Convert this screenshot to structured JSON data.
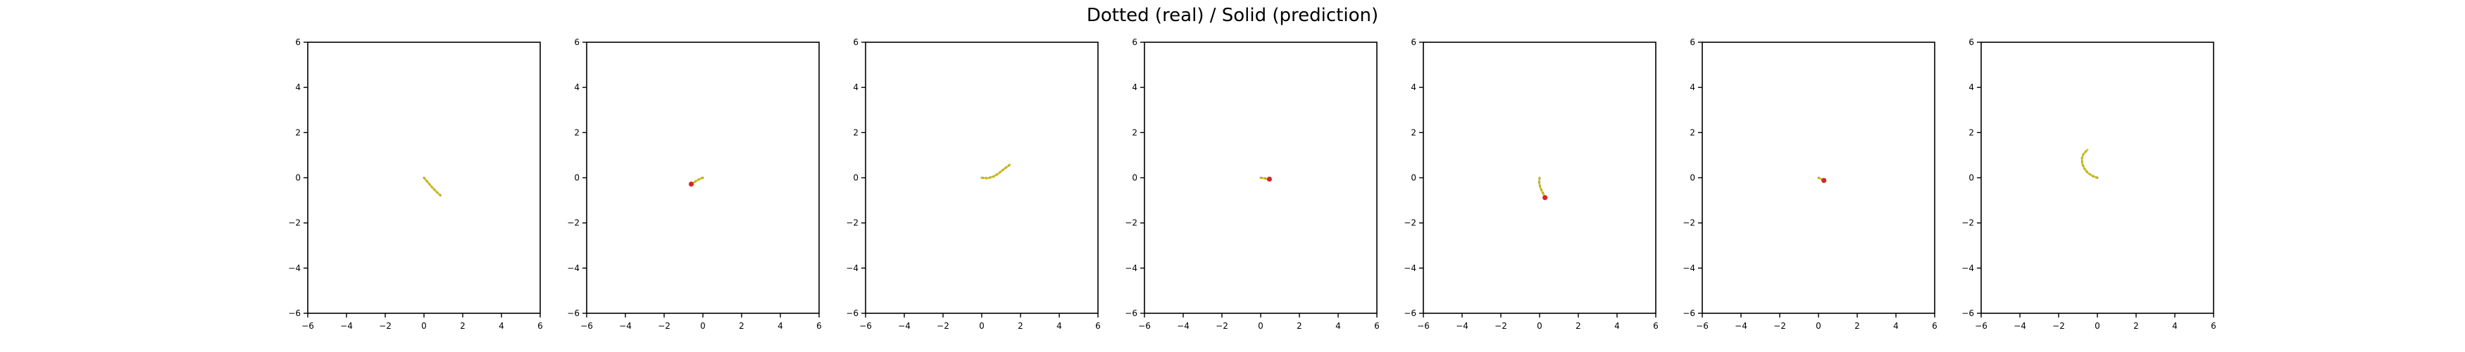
{
  "figure": {
    "title": "Dotted (real) / Solid (prediction)"
  },
  "colors": {
    "real": "#000000",
    "prediction": "#d4c400",
    "endpoint": "#d62728",
    "frame": "#000000"
  },
  "chart_data": [
    {
      "type": "line",
      "xlim": [
        -6,
        6
      ],
      "ylim": [
        -6,
        6
      ],
      "xticks": [
        -6,
        -4,
        -2,
        0,
        2,
        4,
        6
      ],
      "yticks": [
        -6,
        -4,
        -2,
        0,
        2,
        4,
        6
      ],
      "grid": false,
      "series": [
        {
          "style": "dotted",
          "x": [
            0,
            0.15,
            0.3,
            0.45,
            0.6,
            0.75,
            0.85
          ],
          "y": [
            0,
            -0.15,
            -0.3,
            -0.45,
            -0.58,
            -0.7,
            -0.78
          ]
        },
        {
          "style": "solid",
          "x": [
            0,
            0.15,
            0.3,
            0.45,
            0.6,
            0.75,
            0.85
          ],
          "y": [
            0,
            -0.15,
            -0.3,
            -0.45,
            -0.58,
            -0.7,
            -0.78
          ]
        }
      ],
      "endpoint": null
    },
    {
      "type": "line",
      "xlim": [
        -6,
        6
      ],
      "ylim": [
        -6,
        6
      ],
      "xticks": [
        -6,
        -4,
        -2,
        0,
        2,
        4,
        6
      ],
      "yticks": [
        -6,
        -4,
        -2,
        0,
        2,
        4,
        6
      ],
      "grid": false,
      "series": [
        {
          "style": "dotted",
          "x": [
            0,
            -0.15,
            -0.3,
            -0.45,
            -0.6
          ],
          "y": [
            0,
            -0.05,
            -0.12,
            -0.2,
            -0.28
          ]
        },
        {
          "style": "solid",
          "x": [
            0,
            -0.15,
            -0.3,
            -0.45,
            -0.6
          ],
          "y": [
            0,
            -0.05,
            -0.12,
            -0.2,
            -0.28
          ]
        }
      ],
      "endpoint": {
        "x": -0.6,
        "y": -0.28
      }
    },
    {
      "type": "line",
      "xlim": [
        -6,
        6
      ],
      "ylim": [
        -6,
        6
      ],
      "xticks": [
        -6,
        -4,
        -2,
        0,
        2,
        4,
        6
      ],
      "yticks": [
        -6,
        -4,
        -2,
        0,
        2,
        4,
        6
      ],
      "grid": false,
      "series": [
        {
          "style": "dotted",
          "x": [
            0,
            0.3,
            0.6,
            0.85,
            1.05,
            1.25,
            1.45
          ],
          "y": [
            0,
            -0.02,
            0.05,
            0.18,
            0.32,
            0.45,
            0.58
          ]
        },
        {
          "style": "solid",
          "x": [
            0,
            0.3,
            0.6,
            0.85,
            1.05,
            1.25,
            1.45
          ],
          "y": [
            0,
            -0.02,
            0.05,
            0.18,
            0.32,
            0.45,
            0.58
          ]
        }
      ],
      "endpoint": null
    },
    {
      "type": "line",
      "xlim": [
        -6,
        6
      ],
      "ylim": [
        -6,
        6
      ],
      "xticks": [
        -6,
        -4,
        -2,
        0,
        2,
        4,
        6
      ],
      "yticks": [
        -6,
        -4,
        -2,
        0,
        2,
        4,
        6
      ],
      "grid": false,
      "series": [
        {
          "style": "dotted",
          "x": [
            0,
            0.15,
            0.3,
            0.45
          ],
          "y": [
            0,
            -0.02,
            -0.04,
            -0.06
          ]
        },
        {
          "style": "solid",
          "x": [
            0,
            0.15,
            0.3,
            0.45
          ],
          "y": [
            0,
            -0.02,
            -0.04,
            -0.06
          ]
        }
      ],
      "endpoint": {
        "x": 0.45,
        "y": -0.06
      }
    },
    {
      "type": "line",
      "xlim": [
        -6,
        6
      ],
      "ylim": [
        -6,
        6
      ],
      "xticks": [
        -6,
        -4,
        -2,
        0,
        2,
        4,
        6
      ],
      "yticks": [
        -6,
        -4,
        -2,
        0,
        2,
        4,
        6
      ],
      "grid": false,
      "series": [
        {
          "style": "dotted",
          "x": [
            0,
            -0.02,
            0.02,
            0.1,
            0.2,
            0.28
          ],
          "y": [
            0,
            -0.18,
            -0.38,
            -0.56,
            -0.72,
            -0.88
          ]
        },
        {
          "style": "solid",
          "x": [
            0,
            -0.02,
            0.02,
            0.1,
            0.2,
            0.28
          ],
          "y": [
            0,
            -0.18,
            -0.38,
            -0.56,
            -0.72,
            -0.88
          ]
        }
      ],
      "endpoint": {
        "x": 0.28,
        "y": -0.88
      }
    },
    {
      "type": "line",
      "xlim": [
        -6,
        6
      ],
      "ylim": [
        -6,
        6
      ],
      "xticks": [
        -6,
        -4,
        -2,
        0,
        2,
        4,
        6
      ],
      "yticks": [
        -6,
        -4,
        -2,
        0,
        2,
        4,
        6
      ],
      "grid": false,
      "series": [
        {
          "style": "dotted",
          "x": [
            0,
            0.1,
            0.2,
            0.28
          ],
          "y": [
            0,
            -0.04,
            -0.08,
            -0.12
          ]
        },
        {
          "style": "solid",
          "x": [
            0,
            0.1,
            0.2,
            0.28
          ],
          "y": [
            0,
            -0.04,
            -0.08,
            -0.12
          ]
        }
      ],
      "endpoint": {
        "x": 0.28,
        "y": -0.12
      }
    },
    {
      "type": "line",
      "xlim": [
        -6,
        6
      ],
      "ylim": [
        -6,
        6
      ],
      "xticks": [
        -6,
        -4,
        -2,
        0,
        2,
        4,
        6
      ],
      "yticks": [
        -6,
        -4,
        -2,
        0,
        2,
        4,
        6
      ],
      "grid": false,
      "series": [
        {
          "style": "dotted",
          "x": [
            0,
            -0.25,
            -0.5,
            -0.68,
            -0.78,
            -0.8,
            -0.72,
            -0.5
          ],
          "y": [
            0,
            0.08,
            0.22,
            0.42,
            0.62,
            0.85,
            1.05,
            1.25
          ]
        },
        {
          "style": "solid",
          "x": [
            0,
            -0.25,
            -0.5,
            -0.68,
            -0.78,
            -0.8,
            -0.72,
            -0.5
          ],
          "y": [
            0,
            0.08,
            0.22,
            0.42,
            0.62,
            0.85,
            1.05,
            1.25
          ]
        }
      ],
      "endpoint": null
    }
  ]
}
